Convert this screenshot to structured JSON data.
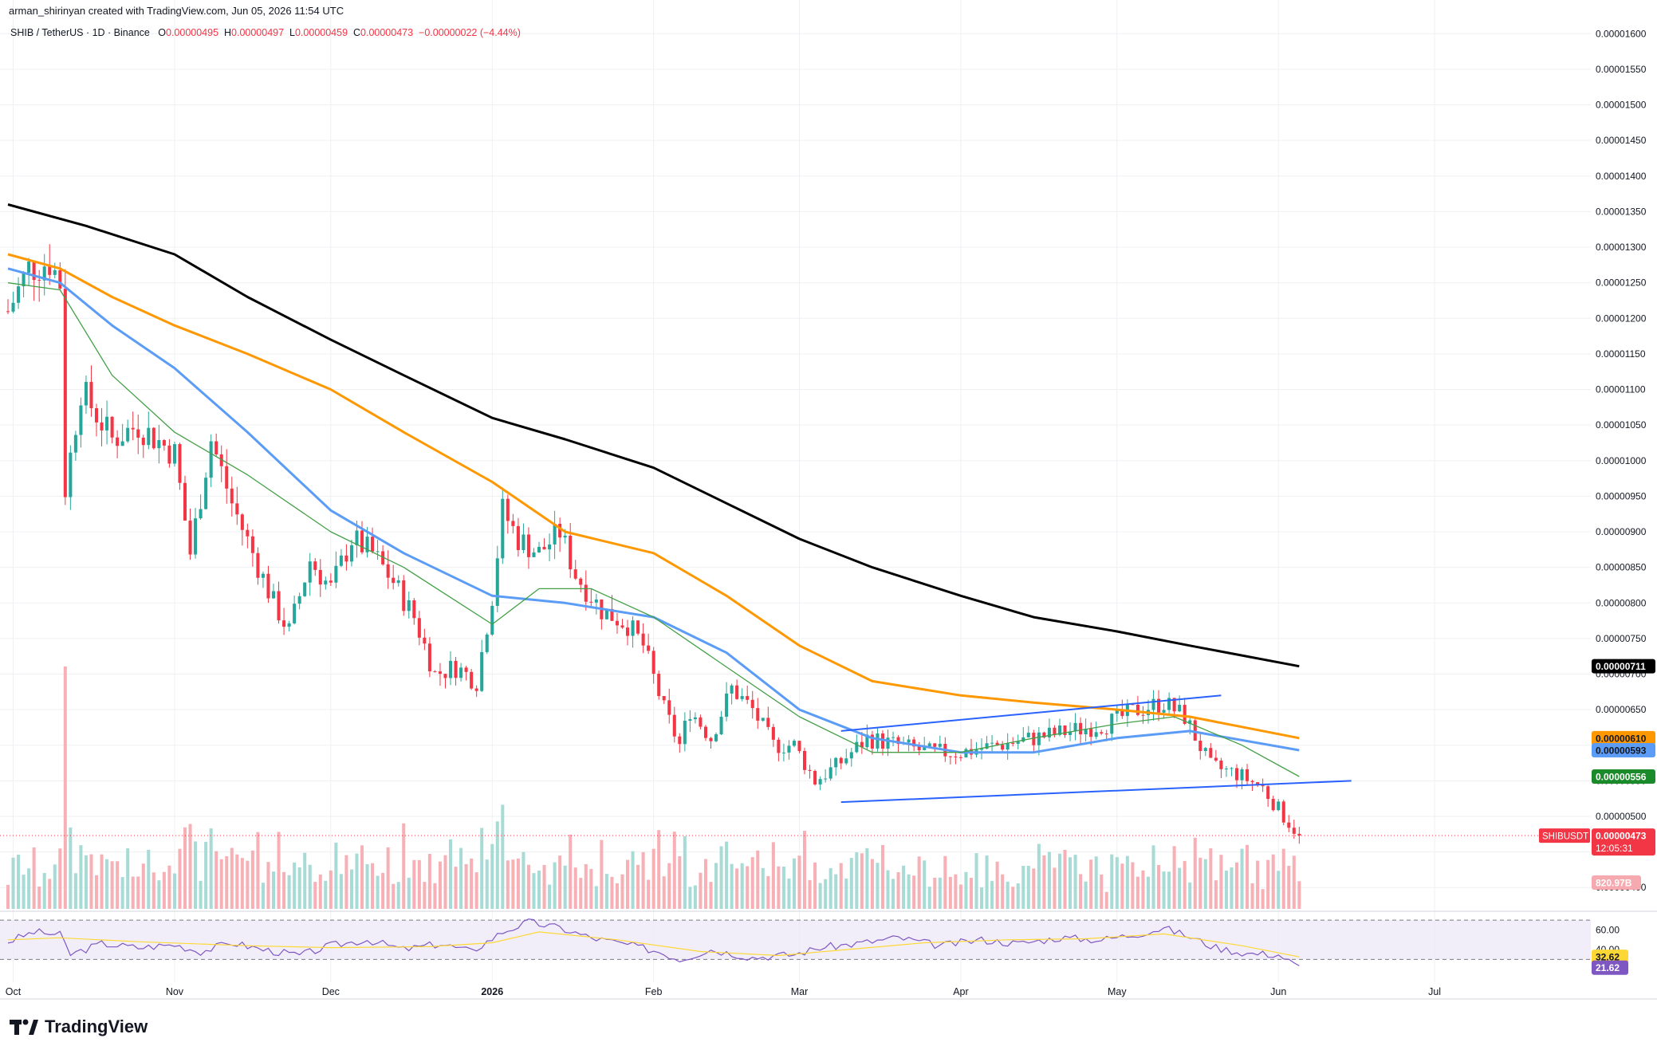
{
  "header": {
    "credit": "arman_shirinyan created with TradingView.com, Jun 05, 2026 11:54 UTC",
    "symbol": "SHIB / TetherUS · 1D · Binance",
    "open_label": "O",
    "open": "0.00000495",
    "high_label": "H",
    "high": "0.00000497",
    "low_label": "L",
    "low": "0.00000459",
    "close_label": "C",
    "close": "0.00000473",
    "change": "−0.00000022 (−4.44%)"
  },
  "branding": {
    "name": "TradingView",
    "icon": "tradingview-logo-icon"
  },
  "colors": {
    "up": "#26a69a",
    "down": "#f23645",
    "ma200": "#000000",
    "ma100": "#ff9800",
    "ma50": "#5b9cf6",
    "ma20": "#43a047",
    "trendline": "#2962ff",
    "rsi": "#7e57c2",
    "rsi_ma": "#fdd835"
  },
  "chart_data": [
    {
      "type": "candlestick",
      "title": "SHIB / TetherUS · 1D · Binance",
      "x_range": [
        "2025-09-30",
        "2026-07-31"
      ],
      "x_ticks": [
        {
          "label": "Oct",
          "date": "2025-10-01"
        },
        {
          "label": "Nov",
          "date": "2025-11-01"
        },
        {
          "label": "Dec",
          "date": "2025-12-01"
        },
        {
          "label": "2026",
          "date": "2026-01-01"
        },
        {
          "label": "Feb",
          "date": "2026-02-01"
        },
        {
          "label": "Mar",
          "date": "2026-03-01"
        },
        {
          "label": "Apr",
          "date": "2026-04-01"
        },
        {
          "label": "May",
          "date": "2026-05-01"
        },
        {
          "label": "Jun",
          "date": "2026-06-01"
        },
        {
          "label": "Jul",
          "date": "2026-07-01"
        }
      ],
      "ylim": [
        3.7e-06,
        1.625e-05
      ],
      "y_ticks": [
        "0.00001600",
        "0.00001550",
        "0.00001500",
        "0.00001450",
        "0.00001400",
        "0.00001350",
        "0.00001300",
        "0.00001250",
        "0.00001200",
        "0.00001150",
        "0.00001100",
        "0.00001050",
        "0.00001000",
        "0.00000950",
        "0.00000900",
        "0.00000850",
        "0.00000800",
        "0.00000750",
        "0.00000700",
        "0.00000650",
        "0.00000600",
        "0.00000550",
        "0.00000500",
        "0.00000450",
        "0.00000400"
      ],
      "close_series": {
        "dates": [
          "2025-09-30",
          "2025-10-04",
          "2025-10-08",
          "2025-10-10",
          "2025-10-11",
          "2025-10-14",
          "2025-10-20",
          "2025-10-25",
          "2025-11-01",
          "2025-11-04",
          "2025-11-08",
          "2025-11-12",
          "2025-11-16",
          "2025-11-20",
          "2025-11-23",
          "2025-11-27",
          "2025-12-01",
          "2025-12-05",
          "2025-12-09",
          "2025-12-13",
          "2025-12-17",
          "2025-12-21",
          "2025-12-25",
          "2025-12-29",
          "2026-01-01",
          "2026-01-03",
          "2026-01-06",
          "2026-01-10",
          "2026-01-14",
          "2026-01-17",
          "2026-01-22",
          "2026-01-27",
          "2026-01-30",
          "2026-02-03",
          "2026-02-06",
          "2026-02-08",
          "2026-02-12",
          "2026-02-16",
          "2026-02-20",
          "2026-02-24",
          "2026-02-28",
          "2026-03-04",
          "2026-03-08",
          "2026-03-14",
          "2026-03-20",
          "2026-03-26",
          "2026-04-01",
          "2026-04-08",
          "2026-04-15",
          "2026-04-22",
          "2026-04-29",
          "2026-05-05",
          "2026-05-10",
          "2026-05-14",
          "2026-05-19",
          "2026-05-24",
          "2026-05-29",
          "2026-06-02",
          "2026-06-05"
        ],
        "values": [
          1.21e-05,
          1.27e-05,
          1.28e-05,
          1.25e-05,
          9.6e-06,
          1.1e-05,
          1.03e-05,
          1.05e-05,
          1.01e-05,
          8.7e-06,
          1.03e-05,
          9.4e-06,
          8.7e-06,
          8e-06,
          7.6e-06,
          8.6e-06,
          8.2e-06,
          8.9e-06,
          8.7e-06,
          8.3e-06,
          7.8e-06,
          7e-06,
          7.1e-06,
          6.9e-06,
          8.1e-06,
          9.3e-06,
          8.9e-06,
          8.7e-06,
          9e-06,
          8.4e-06,
          7.9e-06,
          7.7e-06,
          7.4e-06,
          6.5e-06,
          6e-06,
          6.5e-06,
          6.1e-06,
          6.8e-06,
          6.5e-06,
          6e-06,
          6e-06,
          5.5e-06,
          5.7e-06,
          6.1e-06,
          6e-06,
          5.9e-06,
          5.9e-06,
          6e-06,
          6.1e-06,
          6.2e-06,
          6.3e-06,
          6.5e-06,
          6.6e-06,
          6.4e-06,
          5.7e-06,
          5.6e-06,
          5.4e-06,
          5e-06,
          4.73e-06
        ]
      },
      "moving_averages": [
        {
          "period": 200,
          "color": "#000000",
          "dates": [
            "2025-09-30",
            "2025-10-15",
            "2025-11-01",
            "2025-11-15",
            "2025-12-01",
            "2025-12-15",
            "2026-01-01",
            "2026-01-15",
            "2026-02-01",
            "2026-02-15",
            "2026-03-01",
            "2026-03-15",
            "2026-04-01",
            "2026-04-15",
            "2026-05-01",
            "2026-05-15",
            "2026-06-05"
          ],
          "values": [
            1.36e-05,
            1.33e-05,
            1.29e-05,
            1.23e-05,
            1.17e-05,
            1.12e-05,
            1.06e-05,
            1.03e-05,
            9.9e-06,
            9.4e-06,
            8.9e-06,
            8.5e-06,
            8.1e-06,
            7.8e-06,
            7.6e-06,
            7.4e-06,
            7.11e-06
          ]
        },
        {
          "period": 100,
          "color": "#ff9800",
          "dates": [
            "2025-09-30",
            "2025-10-10",
            "2025-10-20",
            "2025-11-01",
            "2025-11-15",
            "2025-12-01",
            "2025-12-15",
            "2026-01-01",
            "2026-01-15",
            "2026-02-01",
            "2026-02-15",
            "2026-03-01",
            "2026-03-15",
            "2026-04-01",
            "2026-04-15",
            "2026-05-01",
            "2026-05-15",
            "2026-06-05"
          ],
          "values": [
            1.29e-05,
            1.27e-05,
            1.23e-05,
            1.19e-05,
            1.15e-05,
            1.1e-05,
            1.04e-05,
            9.7e-06,
            9e-06,
            8.7e-06,
            8.1e-06,
            7.4e-06,
            6.9e-06,
            6.7e-06,
            6.6e-06,
            6.5e-06,
            6.4e-06,
            6.1e-06
          ]
        },
        {
          "period": 50,
          "color": "#5b9cf6",
          "dates": [
            "2025-09-30",
            "2025-10-10",
            "2025-10-20",
            "2025-11-01",
            "2025-11-15",
            "2025-12-01",
            "2025-12-15",
            "2026-01-01",
            "2026-01-15",
            "2026-02-01",
            "2026-02-15",
            "2026-03-01",
            "2026-03-15",
            "2026-04-01",
            "2026-04-15",
            "2026-05-01",
            "2026-05-15",
            "2026-06-05"
          ],
          "values": [
            1.27e-05,
            1.25e-05,
            1.19e-05,
            1.13e-05,
            1.04e-05,
            9.3e-06,
            8.7e-06,
            8.1e-06,
            8e-06,
            7.8e-06,
            7.3e-06,
            6.5e-06,
            6.1e-06,
            5.9e-06,
            5.9e-06,
            6.1e-06,
            6.2e-06,
            5.93e-06
          ]
        },
        {
          "period": 20,
          "color": "#43a047",
          "dates": [
            "2025-09-30",
            "2025-10-10",
            "2025-10-20",
            "2025-11-01",
            "2025-11-15",
            "2025-12-01",
            "2025-12-15",
            "2026-01-01",
            "2026-01-10",
            "2026-01-20",
            "2026-02-01",
            "2026-02-15",
            "2026-03-01",
            "2026-03-15",
            "2026-04-01",
            "2026-04-15",
            "2026-05-01",
            "2026-05-12",
            "2026-05-25",
            "2026-06-05"
          ],
          "values": [
            1.25e-05,
            1.24e-05,
            1.12e-05,
            1.04e-05,
            9.8e-06,
            9e-06,
            8.5e-06,
            7.7e-06,
            8.2e-06,
            8.2e-06,
            7.8e-06,
            7.1e-06,
            6.4e-06,
            5.9e-06,
            5.9e-06,
            6.1e-06,
            6.3e-06,
            6.4e-06,
            6e-06,
            5.56e-06
          ]
        }
      ],
      "trendlines": [
        {
          "from": {
            "date": "2026-03-09",
            "value": 6.2e-06
          },
          "to": {
            "date": "2026-05-21",
            "value": 6.7e-06
          }
        },
        {
          "from": {
            "date": "2026-03-09",
            "value": 5.2e-06
          },
          "to": {
            "date": "2026-06-15",
            "value": 5.5e-06
          }
        }
      ],
      "price_labels": [
        {
          "text": "0.00000711",
          "value": 7.11e-06,
          "bg": "#000000",
          "fg": "#ffffff"
        },
        {
          "text": "0.00000610",
          "value": 6.1e-06,
          "bg": "#ff9800",
          "fg": "#131722"
        },
        {
          "text": "0.00000593",
          "value": 5.93e-06,
          "bg": "#5b9cf6",
          "fg": "#131722"
        },
        {
          "text": "0.00000556",
          "value": 5.56e-06,
          "bg": "#1b8a2a",
          "fg": "#ffffff"
        }
      ],
      "last_price": {
        "symbol": "SHIBUSDT",
        "value": 4.73e-06,
        "text": "0.00000473",
        "countdown": "12:05:31"
      },
      "volume": {
        "last_label": "820.97B"
      }
    },
    {
      "type": "line",
      "title": "RSI",
      "ylim": [
        10,
        75
      ],
      "y_ticks": [
        "60.00",
        "40.00"
      ],
      "band": [
        30,
        70
      ],
      "rsi": {
        "dates": [
          "2025-09-30",
          "2025-10-05",
          "2025-10-10",
          "2025-10-12",
          "2025-10-18",
          "2025-10-25",
          "2025-11-01",
          "2025-11-06",
          "2025-11-12",
          "2025-11-18",
          "2025-11-25",
          "2025-12-01",
          "2025-12-08",
          "2025-12-15",
          "2025-12-22",
          "2025-12-28",
          "2026-01-03",
          "2026-01-08",
          "2026-01-14",
          "2026-01-20",
          "2026-01-27",
          "2026-02-02",
          "2026-02-06",
          "2026-02-12",
          "2026-02-20",
          "2026-02-28",
          "2026-03-05",
          "2026-03-12",
          "2026-03-20",
          "2026-03-28",
          "2026-04-05",
          "2026-04-12",
          "2026-04-20",
          "2026-04-28",
          "2026-05-05",
          "2026-05-10",
          "2026-05-14",
          "2026-05-20",
          "2026-05-26",
          "2026-06-01",
          "2026-06-05"
        ],
        "values": [
          48,
          58,
          55,
          35,
          46,
          42,
          45,
          38,
          47,
          40,
          34,
          44,
          50,
          40,
          46,
          38,
          58,
          68,
          62,
          52,
          45,
          38,
          30,
          40,
          32,
          35,
          42,
          46,
          52,
          44,
          50,
          46,
          52,
          50,
          56,
          62,
          55,
          42,
          36,
          35,
          21.62
        ]
      },
      "rsi_ma": {
        "dates": [
          "2025-09-30",
          "2025-10-10",
          "2025-10-25",
          "2025-11-15",
          "2025-12-01",
          "2025-12-20",
          "2026-01-01",
          "2026-01-10",
          "2026-01-25",
          "2026-02-10",
          "2026-02-25",
          "2026-03-10",
          "2026-03-25",
          "2026-04-10",
          "2026-04-25",
          "2026-05-10",
          "2026-05-25",
          "2026-06-05"
        ],
        "values": [
          50,
          52,
          48,
          44,
          42,
          43,
          47,
          58,
          50,
          38,
          34,
          40,
          47,
          50,
          51,
          56,
          44,
          32.62
        ]
      },
      "labels": [
        {
          "text": "32.62",
          "value": 32.62,
          "bg": "#fdd835",
          "fg": "#131722"
        },
        {
          "text": "21.62",
          "value": 21.62,
          "bg": "#7e57c2",
          "fg": "#ffffff"
        }
      ]
    }
  ]
}
